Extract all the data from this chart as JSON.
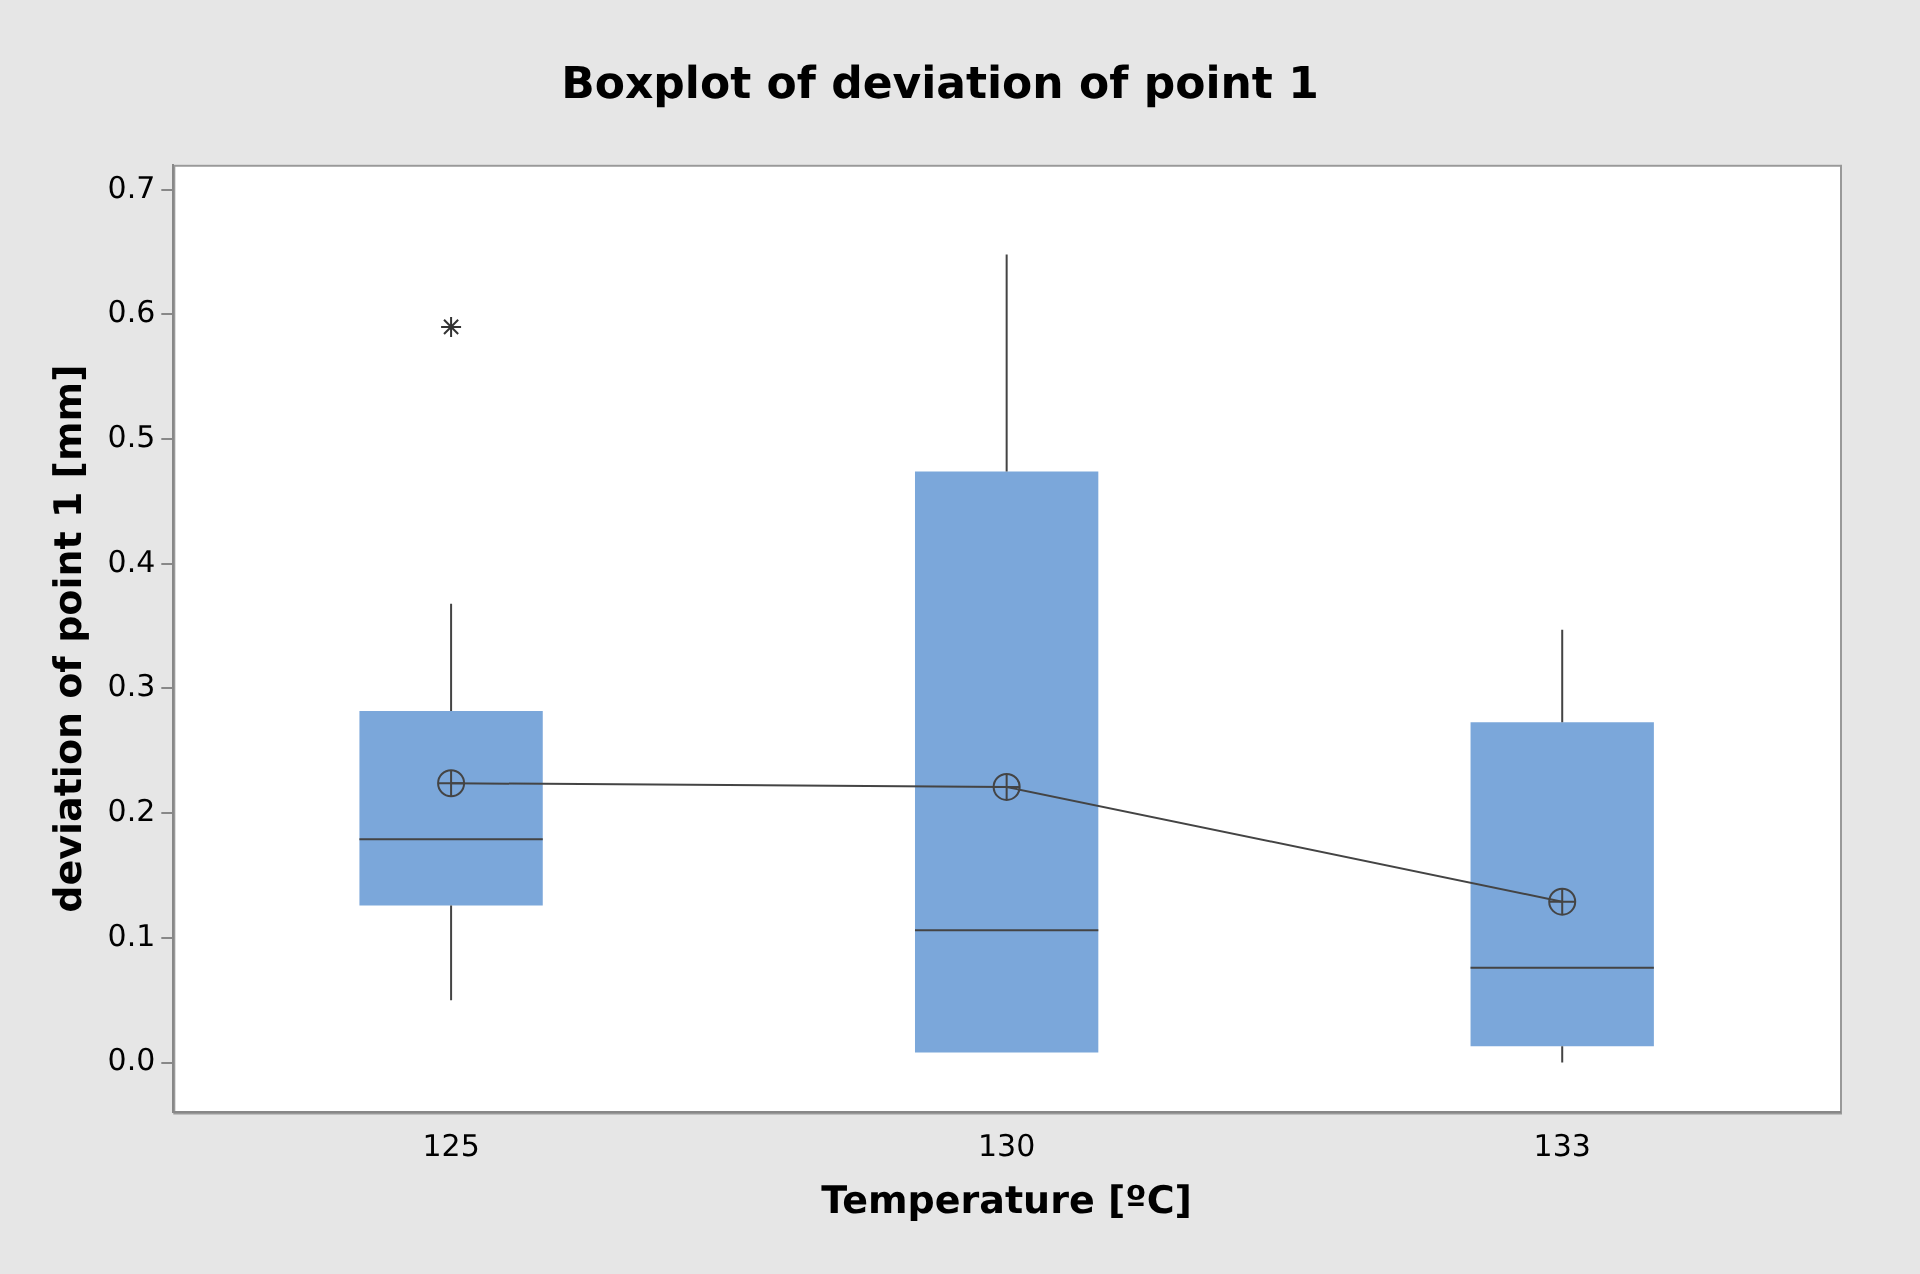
{
  "chart_data": {
    "type": "box",
    "title": "Boxplot of deviation of point 1",
    "xlabel": "Temperature [ºC]",
    "ylabel": "deviation of point 1 [mm]",
    "categories": [
      "125",
      "130",
      "133"
    ],
    "color": "#7ba7da",
    "boxes": [
      {
        "low": 0.05,
        "q1": 0.126,
        "median": 0.179,
        "q3": 0.282,
        "high": 0.368,
        "outliers": [
          0.59
        ]
      },
      {
        "low": 0.008,
        "q1": 0.008,
        "median": 0.106,
        "q3": 0.474,
        "high": 0.648
      },
      {
        "low": 0.0,
        "q1": 0.013,
        "median": 0.076,
        "q3": 0.273,
        "high": 0.347
      }
    ],
    "series": [
      {
        "type": "line",
        "color": "#444444",
        "values": [
          0.224,
          0.221,
          0.129
        ]
      }
    ],
    "ylim": [
      -0.04,
      0.72
    ],
    "yticks": [
      {
        "value": 0,
        "label": "0.0"
      },
      {
        "value": 0.1,
        "label": "0.1"
      },
      {
        "value": 0.2,
        "label": "0.2"
      },
      {
        "value": 0.3,
        "label": "0.3"
      },
      {
        "value": 0.4,
        "label": "0.4"
      },
      {
        "value": 0.5,
        "label": "0.5"
      },
      {
        "value": 0.6,
        "label": "0.6"
      },
      {
        "value": 0.7,
        "label": "0.7"
      }
    ],
    "grid": false,
    "legend": false,
    "marker": "circle"
  }
}
